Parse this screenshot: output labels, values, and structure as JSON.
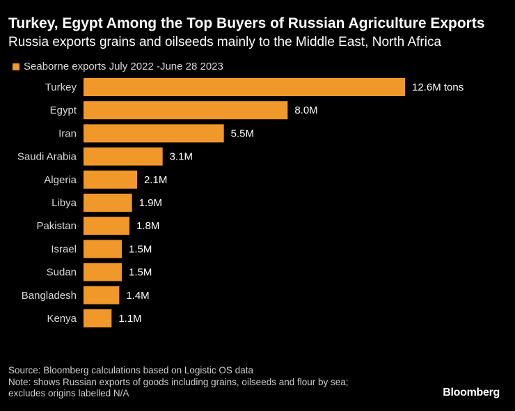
{
  "header": {
    "title": "Turkey, Egypt Among the Top Buyers of Russian Agriculture Exports",
    "subtitle": "Russia exports grains and oilseeds mainly to the Middle East, North Africa"
  },
  "colors": {
    "bar": "#f0982a",
    "background": "#000000",
    "text": "#ffffff"
  },
  "chart_data": {
    "type": "bar",
    "orientation": "horizontal",
    "legend": "top-left",
    "grid": false,
    "unit": "M tons",
    "xlim": [
      0,
      12.6
    ],
    "series": [
      {
        "name": "Seaborne exports July 2022 -June 28 2023",
        "categories": [
          "Turkey",
          "Egypt",
          "Iran",
          "Saudi Arabia",
          "Algeria",
          "Libya",
          "Pakistan",
          "Israel",
          "Sudan",
          "Bangladesh",
          "Kenya"
        ],
        "values": [
          12.6,
          8.0,
          5.5,
          3.1,
          2.1,
          1.9,
          1.8,
          1.5,
          1.5,
          1.4,
          1.1
        ],
        "labels": [
          "12.6M tons",
          "8.0M",
          "5.5M",
          "3.1M",
          "2.1M",
          "1.9M",
          "1.8M",
          "1.5M",
          "1.5M",
          "1.4M",
          "1.1M"
        ]
      }
    ]
  },
  "footer": {
    "source": "Source: Bloomberg calculations based on Logistic OS data",
    "note_line1": "Note: shows Russian exports of goods including grains, oilseeds and flour by sea;",
    "note_line2": "excludes origins labelled N/A",
    "brand": "Bloomberg"
  }
}
